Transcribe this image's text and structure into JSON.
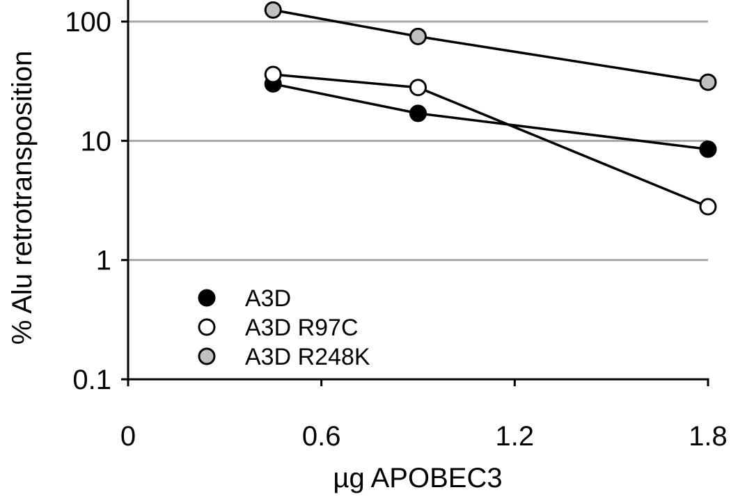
{
  "chart_data": {
    "type": "line",
    "xlabel": "µg APOBEC3",
    "ylabel": "% Alu retrotransposition",
    "xlim": [
      0,
      1.8
    ],
    "ylim": [
      0.1,
      100
    ],
    "y_scale": "log",
    "x_ticks": [
      0,
      0.6,
      1.2,
      1.8
    ],
    "x_tick_labels": [
      "0",
      "0.6",
      "1.2",
      "1.8"
    ],
    "y_ticks": [
      0.1,
      1,
      10,
      100
    ],
    "y_tick_labels": [
      "0.1",
      "1",
      "10",
      "100"
    ],
    "grid": "horizontal",
    "legend_position": "bottom-left",
    "series": [
      {
        "name": "A3D",
        "x": [
          0.45,
          0.9,
          1.8
        ],
        "y": [
          30,
          17,
          8.5
        ],
        "marker_fill": "#000000"
      },
      {
        "name": "A3D R97C",
        "x": [
          0.45,
          0.9,
          1.8
        ],
        "y": [
          36,
          28,
          2.8
        ],
        "marker_fill": "#ffffff"
      },
      {
        "name": "A3D R248K",
        "x": [
          0.45,
          0.9,
          1.8
        ],
        "y": [
          125,
          75,
          31
        ],
        "marker_fill": "#c0c0c0"
      }
    ]
  }
}
